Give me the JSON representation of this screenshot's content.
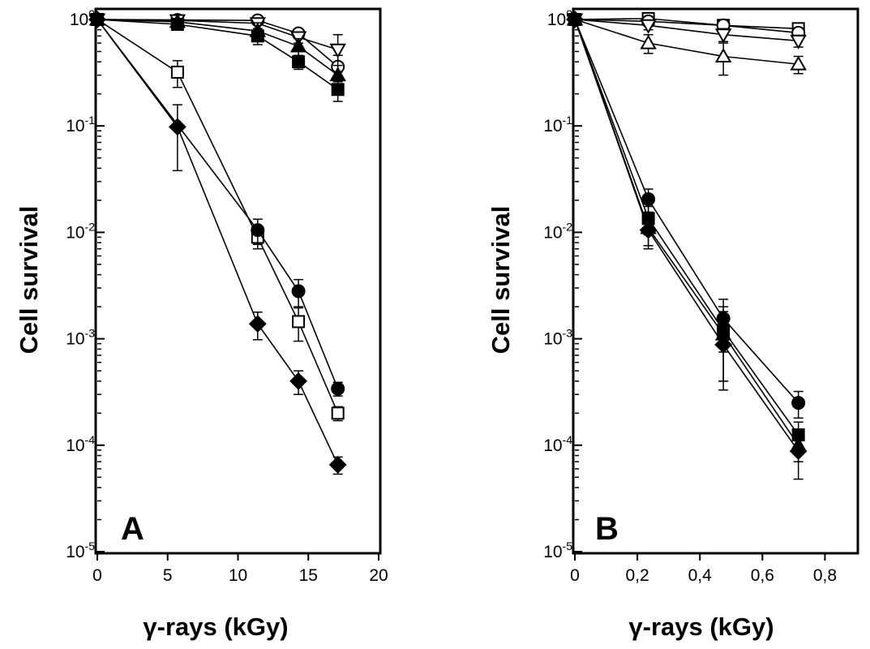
{
  "chart_data": [
    {
      "type": "scatter",
      "panel": "A",
      "xlabel": "γ-rays (kGy)",
      "ylabel": "Cell survival",
      "yscale": "log",
      "xlim": [
        0,
        20
      ],
      "ylim": [
        1e-05,
        1
      ],
      "x_ticks": [
        0,
        5,
        10,
        15,
        20
      ],
      "x_tick_labels": [
        "0",
        "5",
        "10",
        "15",
        "20"
      ],
      "y_ticks": [
        1,
        0.1,
        0.01,
        0.001,
        0.0001,
        1e-05
      ],
      "y_tick_labels": [
        {
          "base": "10",
          "exp": "0"
        },
        {
          "base": "10",
          "exp": "-1"
        },
        {
          "base": "10",
          "exp": "-2"
        },
        {
          "base": "10",
          "exp": "-3"
        },
        {
          "base": "10",
          "exp": "-4"
        },
        {
          "base": "10",
          "exp": "-5"
        }
      ],
      "grid": false,
      "series": [
        {
          "marker": "circle-open",
          "x": [
            0,
            5.7,
            11.4,
            14.3,
            17.1
          ],
          "y": [
            1.0,
            0.99,
            0.98,
            0.74,
            0.36
          ],
          "err": [
            null,
            null,
            null,
            0.06,
            0.1
          ]
        },
        {
          "marker": "triangle-down-open",
          "x": [
            0,
            5.7,
            11.4,
            14.3,
            17.1
          ],
          "y": [
            1.0,
            0.98,
            0.92,
            0.68,
            0.52
          ],
          "err": [
            null,
            null,
            null,
            0.08,
            0.2
          ]
        },
        {
          "marker": "triangle-filled",
          "x": [
            0,
            5.7,
            11.4,
            14.3,
            17.1
          ],
          "y": [
            1.0,
            0.95,
            0.78,
            0.56,
            0.3
          ],
          "err": [
            null,
            0.05,
            0.15,
            0.1,
            0.07
          ]
        },
        {
          "marker": "square-filled",
          "x": [
            0,
            5.7,
            11.4,
            14.3,
            17.1
          ],
          "y": [
            1.0,
            0.9,
            0.7,
            0.4,
            0.22
          ],
          "err": [
            null,
            0.08,
            0.12,
            0.06,
            0.05
          ]
        },
        {
          "marker": "square-open",
          "x": [
            0,
            5.7,
            11.4,
            14.3,
            17.1
          ],
          "y": [
            1.0,
            0.32,
            0.009,
            0.00145,
            0.0002
          ],
          "err": [
            null,
            0.09,
            0.002,
            0.0005,
            3e-05
          ]
        },
        {
          "marker": "circle-filled",
          "x": [
            0,
            11.4,
            14.3,
            17.1
          ],
          "y": [
            1.0,
            0.0105,
            0.0028,
            0.00034
          ],
          "err": [
            null,
            0.0028,
            0.0008,
            5e-05
          ]
        },
        {
          "marker": "diamond-filled",
          "x": [
            0,
            5.7,
            11.4,
            14.3,
            17.1
          ],
          "y": [
            1.0,
            0.098,
            0.00138,
            0.0004,
            6.55e-05
          ],
          "err": [
            null,
            0.06,
            0.0004,
            0.0001,
            1.2e-05
          ]
        }
      ],
      "panel_label": "A"
    },
    {
      "type": "scatter",
      "panel": "B",
      "xlabel": "γ-rays (kGy)",
      "ylabel": "Cell  survival",
      "yscale": "log",
      "xlim": [
        0,
        0.9
      ],
      "ylim": [
        1e-05,
        1
      ],
      "x_ticks": [
        0,
        0.2,
        0.4,
        0.6,
        0.8
      ],
      "x_tick_labels": [
        "0",
        "0,2",
        "0,4",
        "0,6",
        "0,8"
      ],
      "y_ticks": [
        1,
        0.1,
        0.01,
        0.001,
        0.0001,
        1e-05
      ],
      "y_tick_labels": [
        {
          "base": "10",
          "exp": "0"
        },
        {
          "base": "10",
          "exp": "-1"
        },
        {
          "base": "10",
          "exp": "-2"
        },
        {
          "base": "10",
          "exp": "-3"
        },
        {
          "base": "10",
          "exp": "-4"
        },
        {
          "base": "10",
          "exp": "-5"
        }
      ],
      "grid": false,
      "series": [
        {
          "marker": "square-open",
          "x": [
            0,
            0.235,
            0.475,
            0.715
          ],
          "y": [
            1.0,
            1.02,
            0.88,
            0.82
          ],
          "err": [
            null,
            0.12,
            0.1,
            0.1
          ]
        },
        {
          "marker": "circle-open",
          "x": [
            0,
            0.235,
            0.475,
            0.715
          ],
          "y": [
            1.0,
            0.96,
            0.88,
            0.75
          ],
          "err": [
            null,
            null,
            null,
            null
          ]
        },
        {
          "marker": "triangle-down-open",
          "x": [
            0,
            0.235,
            0.475,
            0.715
          ],
          "y": [
            1.0,
            0.88,
            0.72,
            0.63
          ],
          "err": [
            null,
            0.08,
            0.1,
            0.08
          ]
        },
        {
          "marker": "triangle-open",
          "x": [
            0,
            0.235,
            0.475,
            0.715
          ],
          "y": [
            1.0,
            0.6,
            0.45,
            0.38
          ],
          "err": [
            null,
            0.12,
            0.15,
            0.07
          ]
        },
        {
          "marker": "circle-filled",
          "x": [
            0,
            0.235,
            0.475,
            0.715
          ],
          "y": [
            1.0,
            0.0205,
            0.00155,
            0.00025
          ],
          "err": [
            null,
            0.005,
            0.0008,
            7e-05
          ]
        },
        {
          "marker": "square-filled",
          "x": [
            0,
            0.235,
            0.475,
            0.715
          ],
          "y": [
            1.0,
            0.0135,
            0.0012,
            0.000125
          ],
          "err": [
            null,
            0.004,
            0.0008,
            4e-05
          ]
        },
        {
          "marker": "triangle-filled",
          "x": [
            0,
            0.235,
            0.475,
            0.715
          ],
          "y": [
            1.0,
            0.011,
            0.0011,
            0.0001
          ],
          "err": [
            null,
            0.004,
            0.0007,
            3e-05
          ]
        },
        {
          "marker": "diamond-filled",
          "x": [
            0,
            0.235,
            0.475,
            0.715
          ],
          "y": [
            1.0,
            0.0105,
            0.00088,
            8.8e-05
          ],
          "err": [
            null,
            0.003,
            0.00055,
            4e-05
          ]
        }
      ],
      "panel_label": "B"
    }
  ]
}
